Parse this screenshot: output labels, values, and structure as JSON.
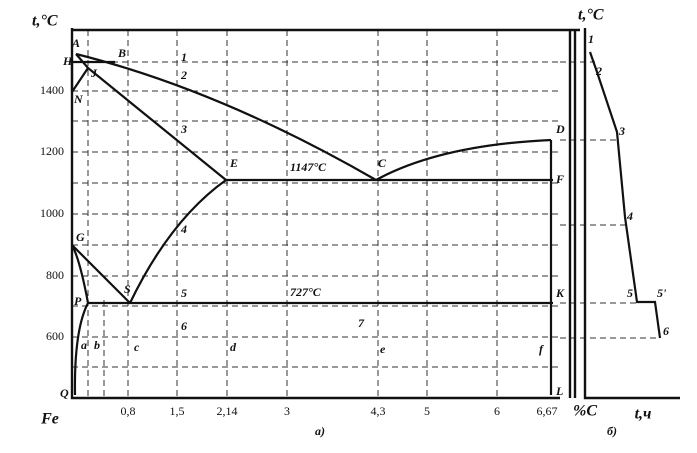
{
  "left_panel": {
    "y_axis_label": "t,°C",
    "y_ticks": [
      "1400",
      "1200",
      "1000",
      "800",
      "600"
    ],
    "x_ticks": [
      "0,8",
      "1,5",
      "2,14",
      "3",
      "4,3",
      "5",
      "6",
      "6,67"
    ],
    "origin": "Fe",
    "x_axis_label": "%C",
    "caption": "а)",
    "points": [
      "A",
      "H",
      "J",
      "B",
      "N",
      "D",
      "C",
      "E",
      "F",
      "G",
      "S",
      "P",
      "K",
      "Q",
      "L"
    ],
    "alloy_points": [
      "1",
      "2",
      "3",
      "4",
      "5",
      "6",
      "7"
    ],
    "alloy_letters": [
      "a",
      "b",
      "c",
      "d",
      "e",
      "f"
    ],
    "temperatures": [
      "1147°C",
      "727°C"
    ]
  },
  "right_panel": {
    "y_axis_label": "t,°C",
    "x_axis_label": "t,ч",
    "caption": "б)",
    "points": [
      "1",
      "2",
      "3",
      "4",
      "5",
      "5'",
      "6"
    ]
  }
}
